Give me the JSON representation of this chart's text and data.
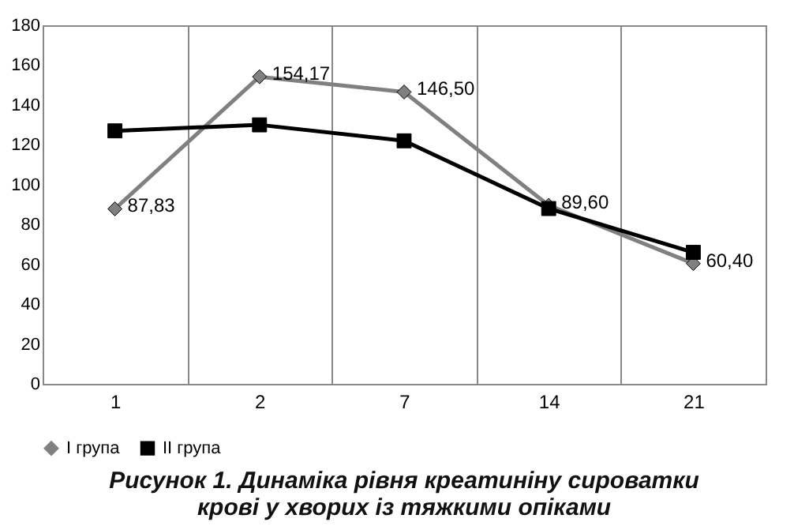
{
  "chart_data": {
    "type": "line",
    "title": "Рисунок 1. Динаміка рівня креатиніну сироватки крові у хворих із тяжкими опіками",
    "categories": [
      "1",
      "2",
      "7",
      "14",
      "21"
    ],
    "series": [
      {
        "name": "I група",
        "color": "#808080",
        "marker": "diamond",
        "values": [
          87.83,
          154.17,
          146.5,
          89.6,
          60.4
        ],
        "value_labels": [
          "87,83",
          "154,17",
          "146,50",
          "89,60",
          "60,40"
        ]
      },
      {
        "name": "II група",
        "color": "#000000",
        "marker": "square",
        "values": [
          127,
          130,
          122,
          88,
          66
        ]
      }
    ],
    "ylim": [
      0,
      180
    ],
    "yticks": [
      0,
      20,
      40,
      60,
      80,
      100,
      120,
      140,
      160,
      180
    ],
    "grid": "x",
    "legend": "bottom",
    "line_style": "solid"
  }
}
